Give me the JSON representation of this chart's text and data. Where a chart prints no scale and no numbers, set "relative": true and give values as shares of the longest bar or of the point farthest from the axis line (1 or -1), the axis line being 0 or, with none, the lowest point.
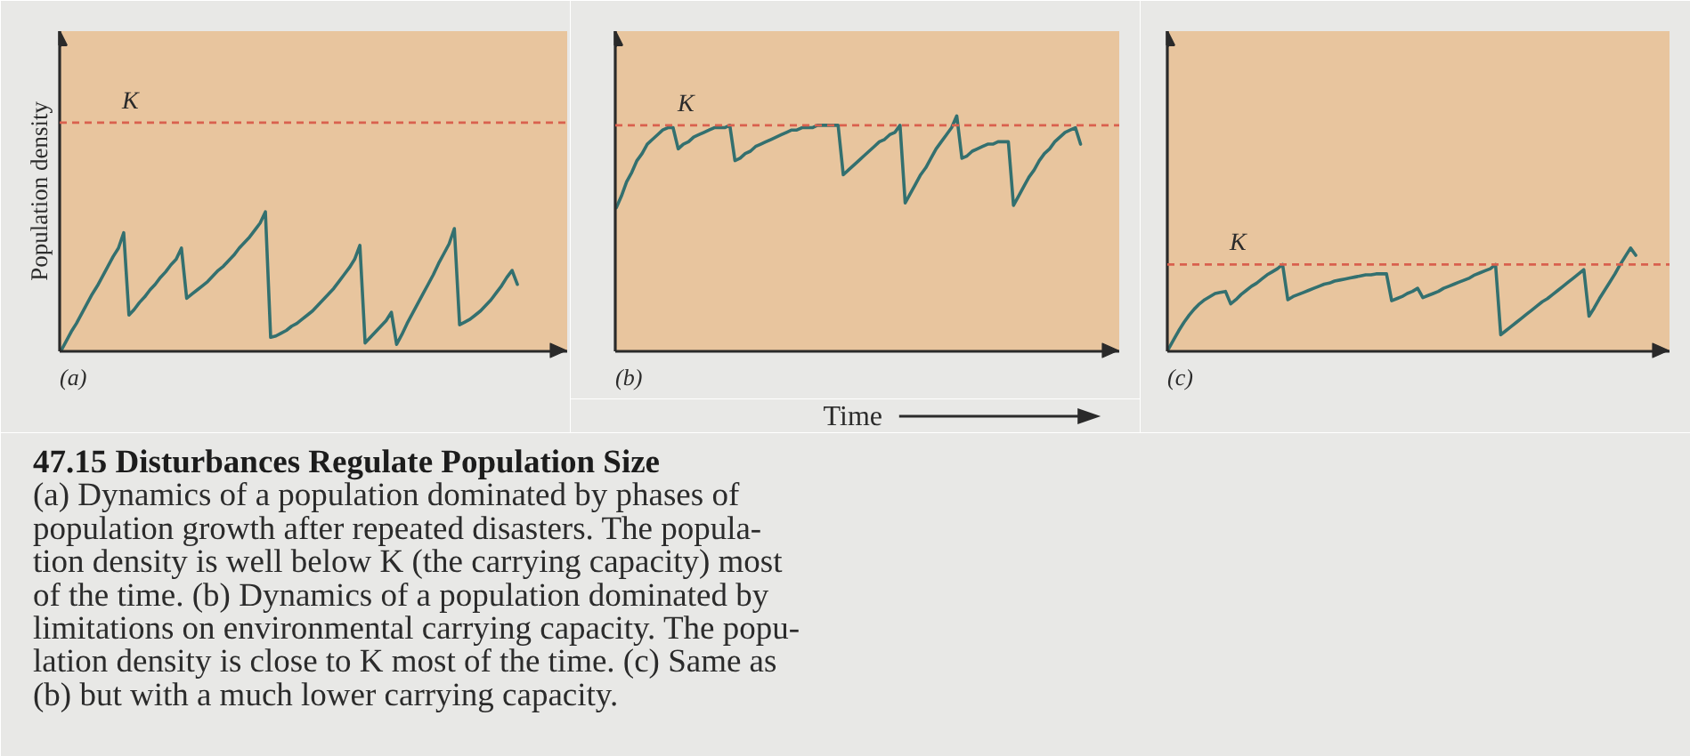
{
  "chart_data": [
    {
      "type": "line",
      "title": "(a)",
      "ylabel": "Population density",
      "relative": true,
      "categories": [
        null,
        null,
        null,
        null,
        null,
        null,
        null,
        null,
        null,
        null,
        null,
        null,
        null,
        null,
        null,
        null,
        null,
        null,
        null,
        null,
        null,
        null,
        null,
        null,
        null,
        null,
        null,
        null,
        null,
        null,
        null,
        null,
        null,
        null,
        null,
        null,
        null,
        null,
        null,
        null,
        null,
        null,
        null,
        null,
        null,
        null,
        null,
        null,
        null,
        null,
        null,
        null,
        null,
        null,
        null,
        null,
        null,
        null,
        null,
        null,
        null,
        null,
        null,
        null,
        null,
        null,
        null,
        null,
        null,
        null,
        null,
        null,
        null,
        null,
        null,
        null,
        null,
        null,
        null,
        null,
        null,
        null,
        null,
        null,
        null,
        null,
        null,
        null,
        null,
        null,
        null,
        null,
        null,
        null
      ],
      "series": [
        {
          "color": "#33706f",
          "values": [
            0,
            0.07,
            0.14,
            0.2,
            0.27,
            0.34,
            0.41,
            0.47,
            0.54,
            0.61,
            0.68,
            0.74,
            0.85,
            0.26,
            0.3,
            0.35,
            0.39,
            0.44,
            0.48,
            0.53,
            0.57,
            0.62,
            0.66,
            0.74,
            0.38,
            0.41,
            0.44,
            0.47,
            0.5,
            0.54,
            0.58,
            0.61,
            0.65,
            0.69,
            0.74,
            0.78,
            0.82,
            0.87,
            0.92,
            1,
            0.1,
            0.11,
            0.13,
            0.15,
            0.18,
            0.2,
            0.23,
            0.26,
            0.29,
            0.33,
            0.37,
            0.41,
            0.45,
            0.5,
            0.55,
            0.6,
            0.66,
            0.76,
            0.06,
            0.1,
            0.14,
            0.18,
            0.22,
            0.28,
            0.05,
            0.12,
            0.2,
            0.27,
            0.34,
            0.41,
            0.48,
            0.55,
            0.63,
            0.7,
            0.77,
            0.88,
            0.19,
            0.21,
            0.23,
            0.26,
            0.29,
            0.33,
            0.37,
            0.42,
            0.47,
            0.53,
            0.58,
            0.48,
            null,
            null,
            null,
            null,
            null,
            null
          ]
        }
      ],
      "ref_lines": [
        {
          "axis": "y",
          "value": 1.64,
          "label": "K",
          "color": "#d9614e",
          "line_style": "dashed"
        }
      ]
    },
    {
      "type": "line",
      "title": "(b)",
      "xlabel": "Time",
      "relative": true,
      "categories": [
        null,
        null,
        null,
        null,
        null,
        null,
        null,
        null,
        null,
        null,
        null,
        null,
        null,
        null,
        null,
        null,
        null,
        null,
        null,
        null,
        null,
        null,
        null,
        null,
        null,
        null,
        null,
        null,
        null,
        null,
        null,
        null,
        null,
        null,
        null,
        null,
        null,
        null,
        null,
        null,
        null,
        null,
        null,
        null,
        null,
        null,
        null,
        null,
        null,
        null,
        null,
        null,
        null,
        null,
        null,
        null,
        null,
        null,
        null,
        null,
        null,
        null,
        null,
        null,
        null,
        null,
        null,
        null,
        null,
        null,
        null,
        null,
        null,
        null,
        null,
        null,
        null,
        null,
        null,
        null,
        null,
        null,
        null,
        null,
        null,
        null,
        null,
        null,
        null,
        null,
        null,
        null,
        null,
        null,
        null
      ],
      "series": [
        {
          "color": "#33706f",
          "values": [
            0.61,
            0.66,
            0.72,
            0.76,
            0.81,
            0.84,
            0.88,
            0.9,
            0.92,
            0.94,
            0.95,
            0.95,
            0.86,
            0.88,
            0.89,
            0.91,
            0.92,
            0.93,
            0.94,
            0.95,
            0.95,
            0.95,
            0.96,
            0.81,
            0.82,
            0.84,
            0.85,
            0.87,
            0.88,
            0.89,
            0.9,
            0.91,
            0.92,
            0.93,
            0.94,
            0.94,
            0.95,
            0.95,
            0.95,
            0.96,
            0.96,
            0.96,
            0.96,
            0.96,
            0.75,
            0.77,
            0.79,
            0.81,
            0.83,
            0.85,
            0.87,
            0.89,
            0.9,
            0.92,
            0.93,
            0.96,
            0.63,
            0.67,
            0.71,
            0.75,
            0.78,
            0.82,
            0.86,
            0.89,
            0.92,
            0.95,
            1,
            0.82,
            0.83,
            0.85,
            0.86,
            0.87,
            0.88,
            0.88,
            0.89,
            0.89,
            0.89,
            0.62,
            0.66,
            0.7,
            0.74,
            0.77,
            0.81,
            0.84,
            0.86,
            0.89,
            0.91,
            0.93,
            0.94,
            0.95,
            0.88,
            null,
            null,
            null,
            null
          ]
        }
      ],
      "ref_lines": [
        {
          "axis": "y",
          "value": 0.96,
          "label": "K",
          "color": "#d9614e",
          "line_style": "dashed"
        }
      ]
    },
    {
      "type": "line",
      "title": "(c)",
      "relative": true,
      "categories": [
        null,
        null,
        null,
        null,
        null,
        null,
        null,
        null,
        null,
        null,
        null,
        null,
        null,
        null,
        null,
        null,
        null,
        null,
        null,
        null,
        null,
        null,
        null,
        null,
        null,
        null,
        null,
        null,
        null,
        null,
        null,
        null,
        null,
        null,
        null,
        null,
        null,
        null,
        null,
        null,
        null,
        null,
        null,
        null,
        null,
        null,
        null,
        null,
        null,
        null,
        null,
        null,
        null,
        null,
        null,
        null,
        null,
        null,
        null,
        null,
        null,
        null,
        null,
        null,
        null,
        null,
        null,
        null,
        null,
        null,
        null,
        null,
        null,
        null,
        null,
        null,
        null,
        null,
        null,
        null,
        null,
        null,
        null,
        null,
        null,
        null,
        null,
        null,
        null,
        null,
        null,
        null,
        null,
        null
      ],
      "series": [
        {
          "color": "#33706f",
          "values": [
            0.02,
            0.11,
            0.2,
            0.28,
            0.35,
            0.41,
            0.46,
            0.5,
            0.53,
            0.56,
            0.57,
            0.58,
            0.46,
            0.5,
            0.55,
            0.59,
            0.63,
            0.66,
            0.7,
            0.74,
            0.77,
            0.8,
            0.84,
            0.5,
            0.53,
            0.55,
            0.57,
            0.59,
            0.61,
            0.63,
            0.65,
            0.66,
            0.68,
            0.69,
            0.7,
            0.71,
            0.72,
            0.73,
            0.74,
            0.74,
            0.75,
            0.75,
            0.75,
            0.49,
            0.51,
            0.53,
            0.56,
            0.58,
            0.61,
            0.52,
            0.54,
            0.56,
            0.58,
            0.61,
            0.63,
            0.65,
            0.67,
            0.69,
            0.71,
            0.74,
            0.76,
            0.78,
            0.8,
            0.84,
            0.16,
            0.2,
            0.24,
            0.28,
            0.32,
            0.36,
            0.4,
            0.44,
            0.48,
            0.51,
            0.55,
            0.59,
            0.63,
            0.67,
            0.71,
            0.75,
            0.79,
            0.34,
            0.42,
            0.51,
            0.59,
            0.67,
            0.75,
            0.84,
            0.92,
            1,
            0.93,
            null,
            null,
            null
          ]
        }
      ],
      "ref_lines": [
        {
          "axis": "y",
          "value": 0.84,
          "label": "K",
          "color": "#d9614e",
          "line_style": "dashed"
        }
      ]
    },
    {
      "type": "other",
      "title": "47.15 Disturbances Regulate Population Size",
      "annotations": [
        "(a) Dynamics of a population dominated by phases of\npopulation growth after repeated disasters. The popula-\ntion density is well below K (the carrying capacity) most\nof the time. (b) Dynamics of a population dominated by\nlimitations on environmental carrying capacity. The popu-\nlation density is close to K most of the time. (c) Same as\n(b) but with a much lower carrying capacity."
      ]
    }
  ]
}
